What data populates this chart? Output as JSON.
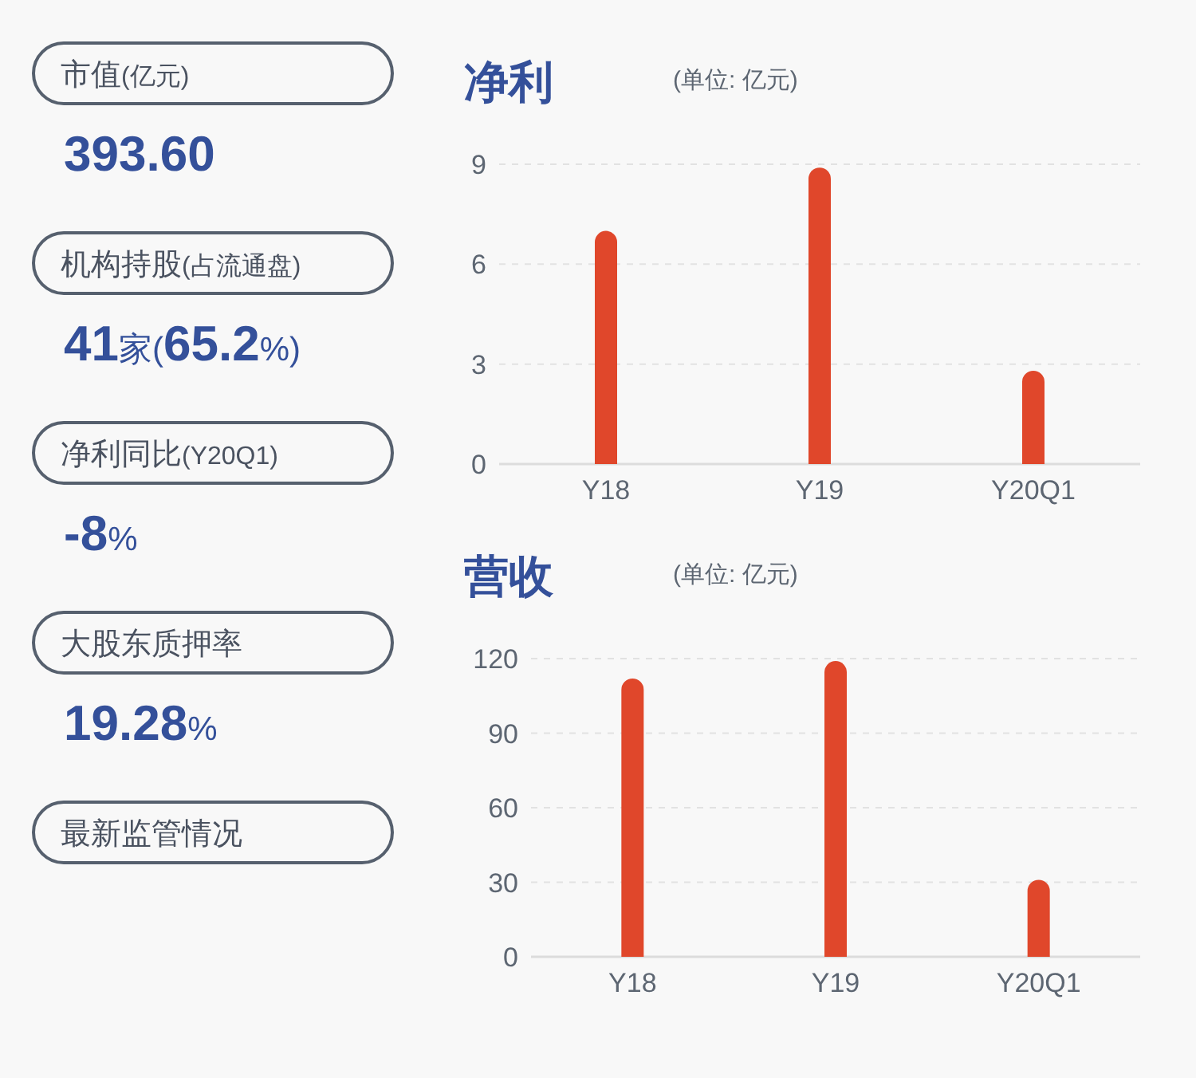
{
  "chart_data": [
    {
      "type": "other",
      "annotations": [
        "市值(亿元)",
        "393.60",
        "机构持股(占流通盘)",
        "41家(65.2%)",
        "净利同比(Y20Q1)",
        "-8%",
        "大股东质押率",
        "19.28%",
        "最新监管情况"
      ]
    },
    {
      "type": "bar",
      "title": "净利",
      "subtitle": "(单位: 亿元)",
      "categories": [
        "Y18",
        "Y19",
        "Y20Q1"
      ],
      "values": [
        7.0,
        8.9,
        2.8
      ],
      "color": "#e0472b",
      "ylim": [
        0,
        9
      ],
      "yticks": [
        0,
        3,
        6,
        9
      ],
      "grid": "y"
    },
    {
      "type": "bar",
      "title": "营收",
      "subtitle": "(单位: 亿元)",
      "categories": [
        "Y18",
        "Y19",
        "Y20Q1"
      ],
      "values": [
        112,
        119,
        31
      ],
      "color": "#e0472b",
      "ylim": [
        0,
        120
      ],
      "yticks": [
        0,
        30,
        60,
        90,
        120
      ],
      "grid": "y"
    }
  ]
}
